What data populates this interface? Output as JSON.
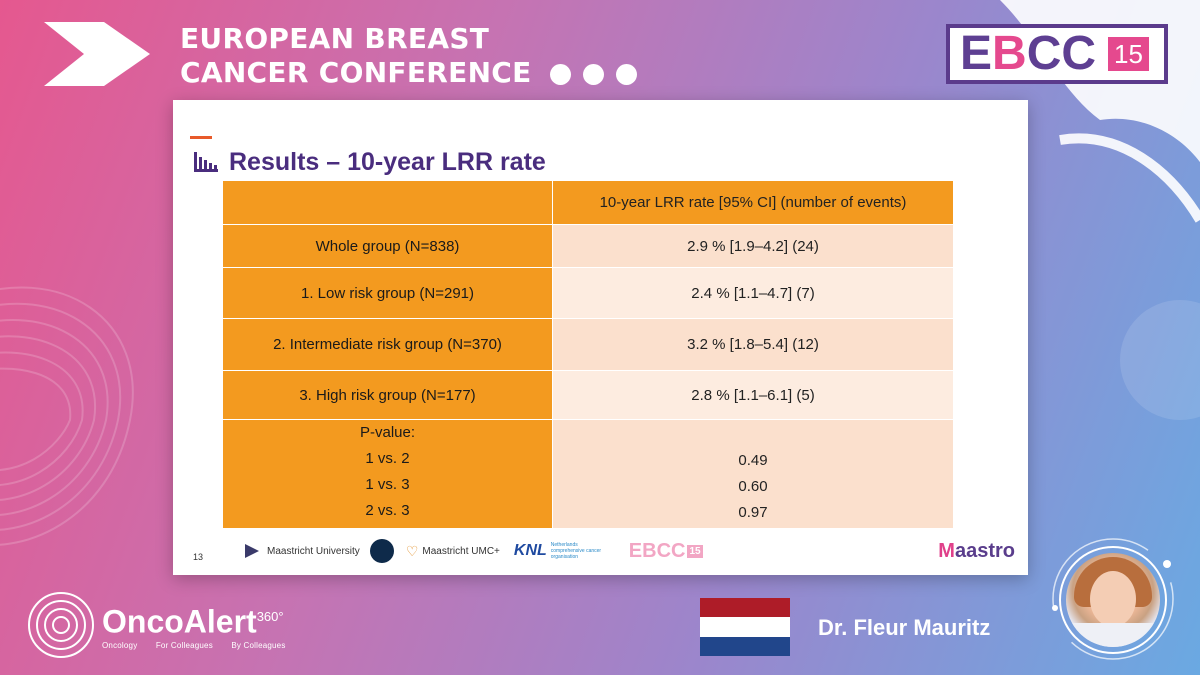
{
  "conference": {
    "title_line1": "EUROPEAN BREAST",
    "title_line2": "CANCER CONFERENCE",
    "badge_e": "E",
    "badge_b": "B",
    "badge_cc": "CC",
    "badge_number": "15"
  },
  "slide": {
    "title": "Results – 10-year LRR rate",
    "page_number": "13",
    "table": {
      "header": "10-year LRR rate [95% CI]  (number of events)",
      "rows": [
        {
          "label": "Whole group (N=838)",
          "value": "2.9 % [1.9–4.2]  (24)"
        },
        {
          "label": "1. Low risk group (N=291)",
          "value": "2.4 % [1.1–4.7]  (7)"
        },
        {
          "label": "2. Intermediate risk group (N=370)",
          "value": "3.2 % [1.8–5.4]  (12)"
        },
        {
          "label": "3. High risk group (N=177)",
          "value": "2.8 % [1.1–6.1]  (5)"
        }
      ],
      "pvalue": {
        "title": "P-value:",
        "comparisons": [
          {
            "label": "1 vs. 2",
            "value": "0.49"
          },
          {
            "label": "1 vs. 3",
            "value": "0.60"
          },
          {
            "label": "2 vs. 3",
            "value": "0.97"
          }
        ]
      }
    },
    "logos": {
      "maastricht_university": "Maastricht University",
      "maastricht_umc": "Maastricht UMC+",
      "knl": "KNL",
      "knl_sub": "Netherlands comprehensive cancer organisation",
      "ebcc": "EBCC",
      "ebcc_num": "15",
      "maastro_m": "M",
      "maastro_rest": "aastro"
    }
  },
  "brand": {
    "name": "OncoAlert",
    "sup": "360°",
    "tag1": "Oncology",
    "tag2": "For Colleagues",
    "tag3": "By Colleagues"
  },
  "speaker": {
    "name": "Dr. Fleur Mauritz",
    "flag_colors": [
      "#ae1c28",
      "#ffffff",
      "#21468b"
    ]
  }
}
